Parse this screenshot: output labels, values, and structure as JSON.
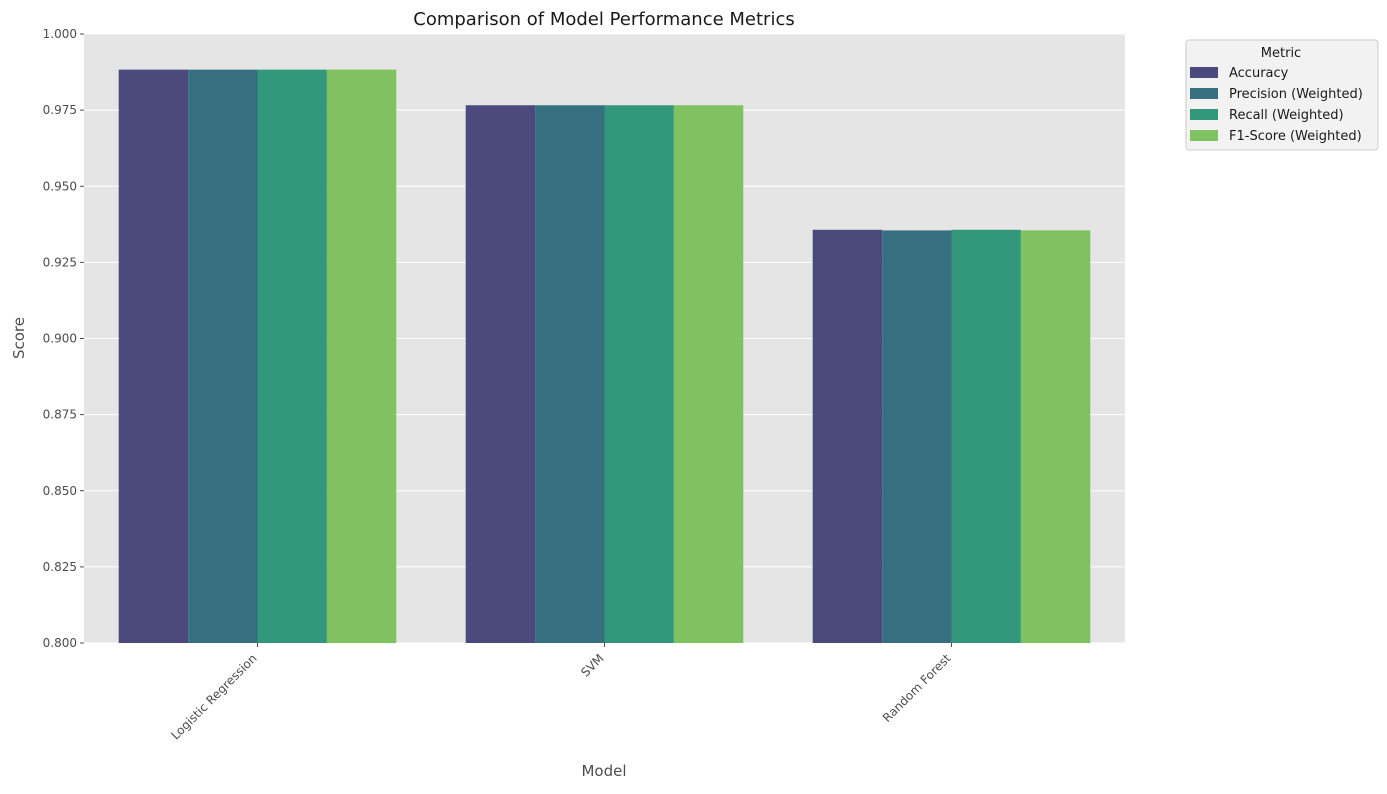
{
  "chart_data": {
    "type": "bar",
    "title": "Comparison of Model Performance Metrics",
    "xlabel": "Model",
    "ylabel": "Score",
    "ylim": [
      0.8,
      1.0
    ],
    "yticks": [
      "0.800",
      "0.825",
      "0.850",
      "0.875",
      "0.900",
      "0.925",
      "0.950",
      "0.975",
      "1.000"
    ],
    "categories": [
      "Logistic Regression",
      "SVM",
      "Random Forest"
    ],
    "series": [
      {
        "name": "Accuracy",
        "color": "#4a4a7c",
        "values": [
          0.9883,
          0.9766,
          0.9357
        ]
      },
      {
        "name": "Precision (Weighted)",
        "color": "#366f80",
        "values": [
          0.9883,
          0.9766,
          0.9355
        ]
      },
      {
        "name": "Recall (Weighted)",
        "color": "#33977c",
        "values": [
          0.9883,
          0.9766,
          0.9357
        ]
      },
      {
        "name": "F1-Score (Weighted)",
        "color": "#80c262",
        "values": [
          0.9883,
          0.9766,
          0.9355
        ]
      }
    ],
    "legend": {
      "title": "Metric",
      "placement": "outside-top-right"
    },
    "grid": true,
    "background": "#e5e5e5"
  }
}
